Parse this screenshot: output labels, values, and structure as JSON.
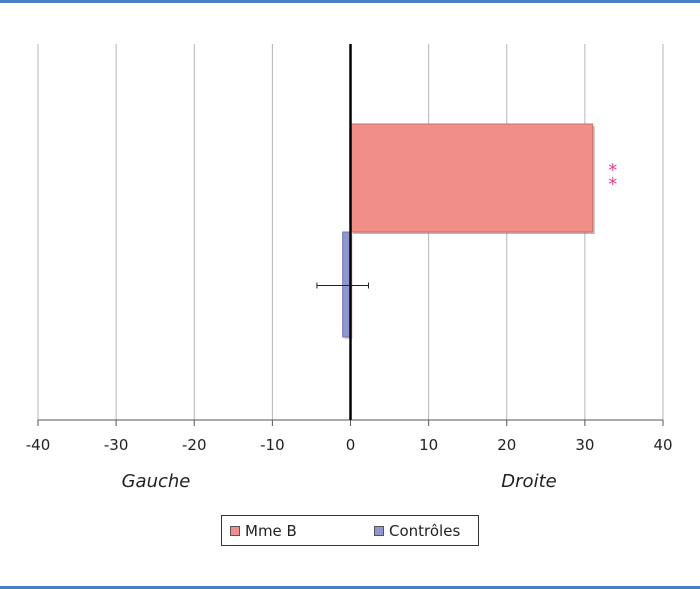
{
  "chart_data": {
    "type": "bar",
    "orientation": "horizontal",
    "xlim": [
      -40,
      40
    ],
    "x_ticks": [
      "-40",
      "-30",
      "-20",
      "-10",
      "0",
      "10",
      "20",
      "30",
      "40"
    ],
    "grid": true,
    "left_label": "Gauche",
    "right_label": "Droite",
    "significance_marker": "**",
    "legend_position": "bottom",
    "series": [
      {
        "name": "Mme B",
        "value": 31,
        "color": "#f28e8a"
      },
      {
        "name": "Contrôles",
        "value": -1,
        "error": 3.3,
        "color": "#8e95cf"
      }
    ]
  }
}
